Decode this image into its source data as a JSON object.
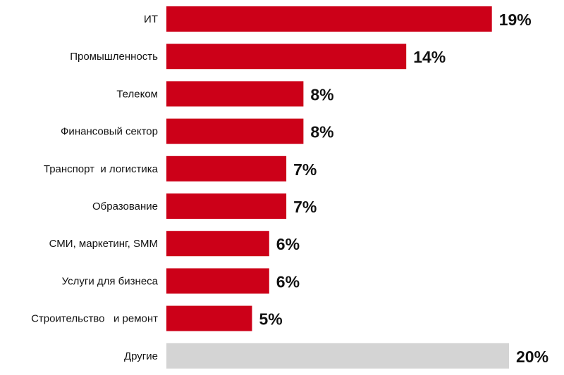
{
  "chart_data": {
    "type": "bar",
    "orientation": "horizontal",
    "title": "",
    "xlabel": "",
    "ylabel": "",
    "categories": [
      "ИТ",
      "Промышленность",
      "Телеком",
      "Финансовый сектор",
      "Транспорт  и логистика",
      "Образование",
      "СМИ, маркетинг, SMM",
      "Услуги для бизнеса",
      "Строительство   и ремонт",
      "Другие"
    ],
    "values": [
      19,
      14,
      8,
      8,
      7,
      7,
      6,
      6,
      5,
      20
    ],
    "value_labels": [
      "19%",
      "14%",
      "8%",
      "8%",
      "7%",
      "7%",
      "6%",
      "6%",
      "5%",
      "20%"
    ],
    "unit": "%",
    "xlim": [
      0,
      20
    ],
    "grid": false,
    "legend": "none",
    "colors": {
      "primary": "#cc0018",
      "other": "#d4d4d4"
    },
    "highlight_last_as_other": true
  }
}
